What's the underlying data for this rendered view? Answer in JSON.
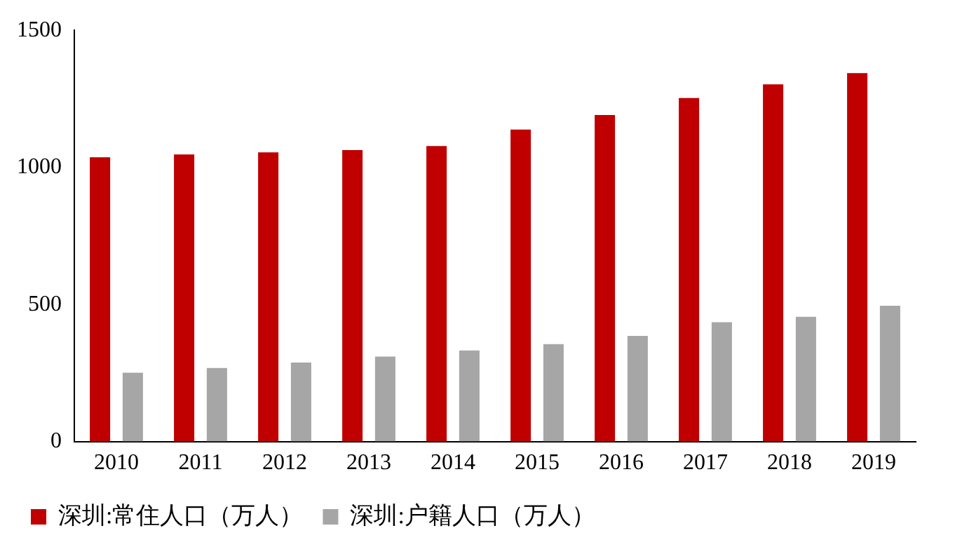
{
  "chart_data": {
    "type": "bar",
    "categories": [
      "2010",
      "2011",
      "2012",
      "2013",
      "2014",
      "2015",
      "2016",
      "2017",
      "2018",
      "2019"
    ],
    "series": [
      {
        "name": "深圳:常住人口（万人）",
        "color": "#c00000",
        "values": [
          1037,
          1047,
          1055,
          1063,
          1078,
          1138,
          1191,
          1253,
          1303,
          1344
        ]
      },
      {
        "name": "深圳:户籍人口（万人）",
        "color": "#a6a6a6",
        "values": [
          251,
          268,
          288,
          310,
          332,
          355,
          385,
          435,
          455,
          495
        ]
      }
    ],
    "ylim": [
      0,
      1500
    ],
    "yticks": [
      0,
      500,
      1000,
      1500
    ],
    "grid": false,
    "legend": "bottom"
  }
}
